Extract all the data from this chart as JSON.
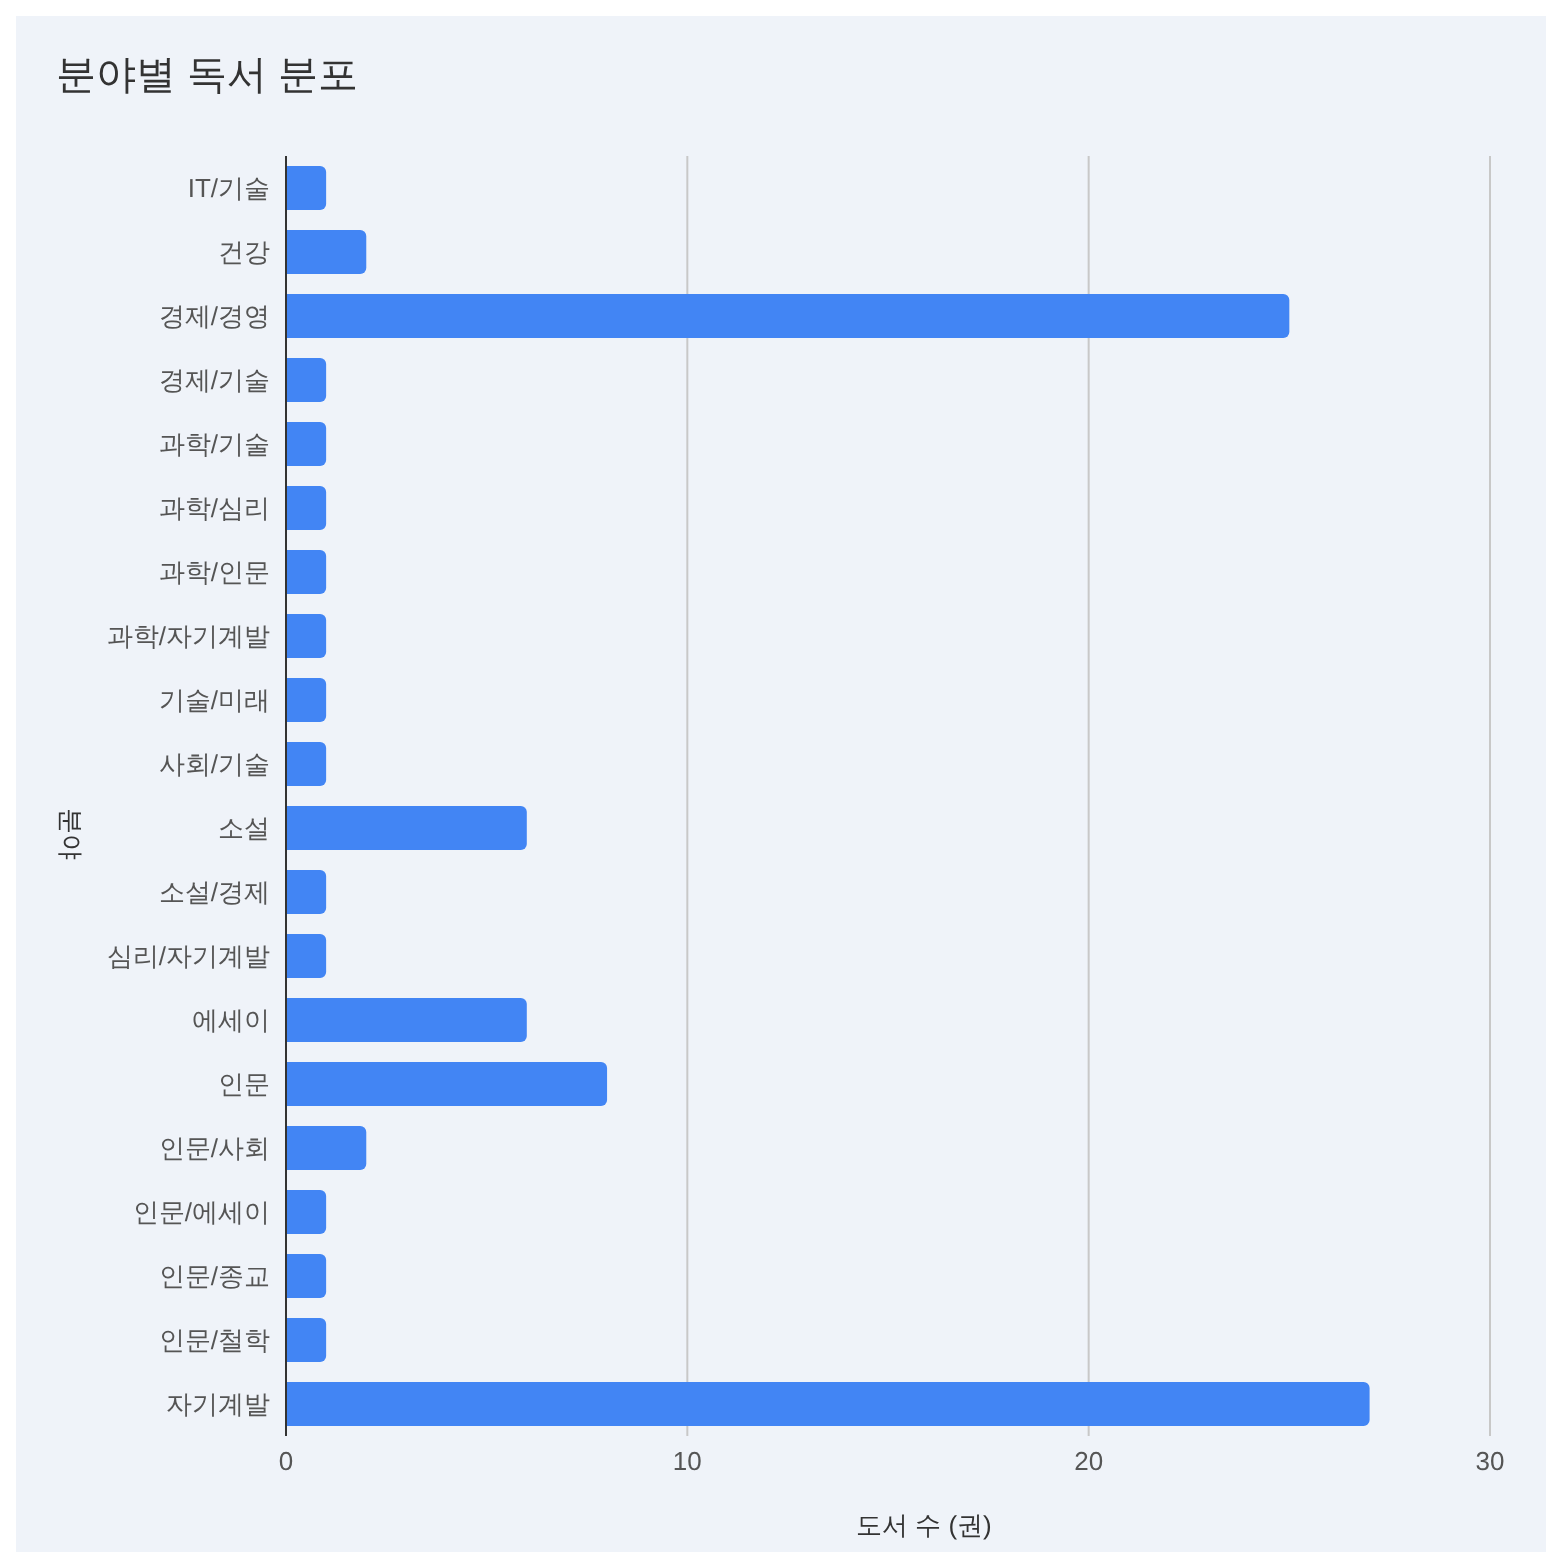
{
  "chart_data": {
    "type": "bar",
    "orientation": "horizontal",
    "title": "분야별 독서 분포",
    "xlabel": "도서 수 (권)",
    "ylabel": "분야",
    "categories": [
      "IT/기술",
      "건강",
      "경제/경영",
      "경제/기술",
      "과학/기술",
      "과학/심리",
      "과학/인문",
      "과학/자기계발",
      "기술/미래",
      "사회/기술",
      "소설",
      "소설/경제",
      "심리/자기계발",
      "에세이",
      "인문",
      "인문/사회",
      "인문/에세이",
      "인문/종교",
      "인문/철학",
      "자기계발"
    ],
    "values": [
      1,
      2,
      25,
      1,
      1,
      1,
      1,
      1,
      1,
      1,
      6,
      1,
      1,
      6,
      8,
      2,
      1,
      1,
      1,
      27
    ],
    "color": "#4285f4",
    "xlim": [
      0,
      30
    ],
    "xticks": [
      0,
      10,
      20,
      30
    ],
    "grid": "x",
    "legend": false
  }
}
